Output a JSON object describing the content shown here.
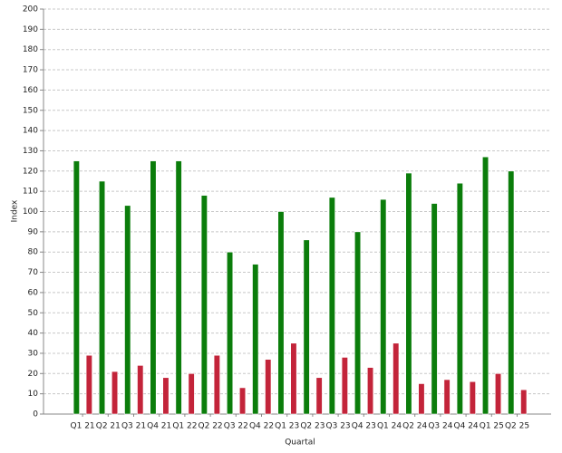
{
  "chart_data": {
    "type": "bar",
    "x_label": "Quartal",
    "y_label": "Index",
    "categories": [
      "Q1 21",
      "Q2 21",
      "Q3 21",
      "Q4 21",
      "Q1 22",
      "Q2 22",
      "Q3 22",
      "Q4 22",
      "Q1 23",
      "Q2 23",
      "Q3 23",
      "Q4 23",
      "Q1 24",
      "Q2 24",
      "Q3 24",
      "Q4 24",
      "Q1 25",
      "Q2 25"
    ],
    "series": [
      {
        "color": "#0b7d0b",
        "values": [
          125,
          115,
          103,
          125,
          125,
          108,
          80,
          74,
          100,
          86,
          107,
          90,
          106,
          119,
          104,
          114,
          127,
          120
        ]
      },
      {
        "color": "#c3243a",
        "values": [
          29,
          21,
          24,
          18,
          20,
          29,
          13,
          27,
          35,
          18,
          28,
          23,
          35,
          15,
          17,
          16,
          20,
          12
        ]
      }
    ],
    "ylim": [
      0,
      200
    ],
    "yticks": [
      0,
      10,
      20,
      30,
      40,
      50,
      60,
      70,
      80,
      90,
      100,
      110,
      120,
      130,
      140,
      150,
      160,
      170,
      180,
      190,
      200
    ],
    "grid": true
  }
}
